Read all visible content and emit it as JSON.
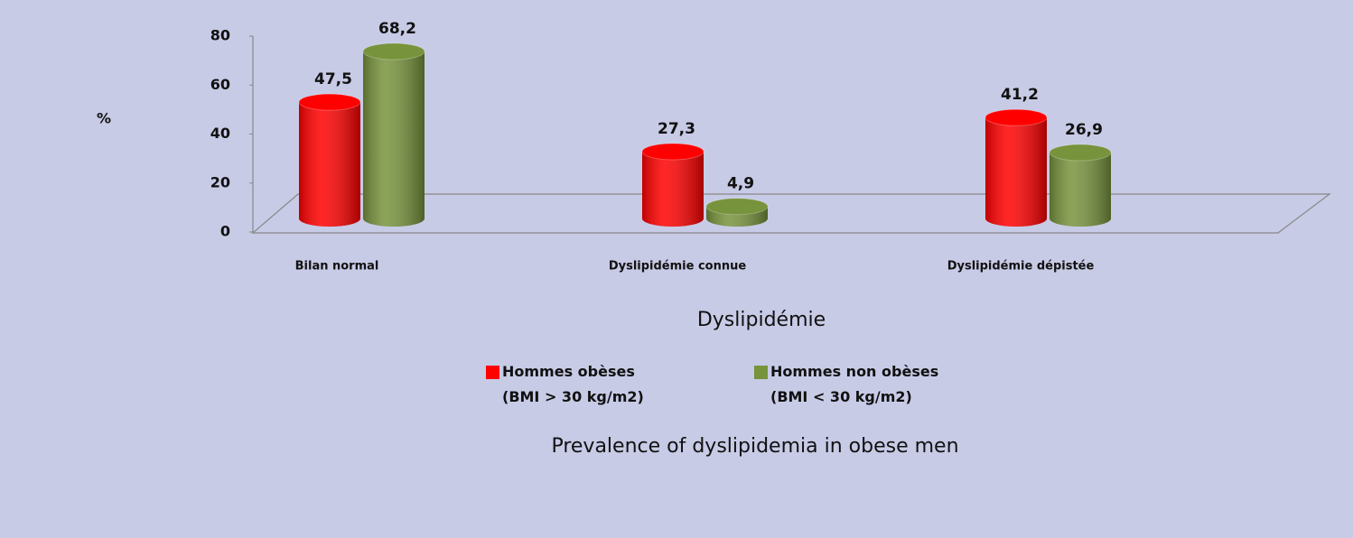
{
  "chart_data": {
    "type": "bar",
    "title": "Prevalence of dyslipidemia in obese men",
    "y_axis_label": "%",
    "x_axis_label": "Dyslipidémie",
    "categories": [
      "Bilan normal",
      "Dyslipidémie connue",
      "Dyslipidémie dépistée"
    ],
    "series": [
      {
        "name": "Hommes obèses\n(BMI > 30 kg/m2)",
        "color": "#ff0000",
        "values": [
          47.5,
          27.3,
          41.2
        ],
        "value_labels": [
          "47,5",
          "27,3",
          "41,2"
        ]
      },
      {
        "name": "Hommes non obèses\n(BMI < 30 kg/m2)",
        "color": "#77933c",
        "values": [
          68.2,
          4.9,
          26.9
        ],
        "value_labels": [
          "68,2",
          "4,9",
          "26,9"
        ]
      }
    ],
    "ylim": [
      0,
      80
    ],
    "yticks": [
      0,
      20,
      40,
      60,
      80
    ]
  }
}
